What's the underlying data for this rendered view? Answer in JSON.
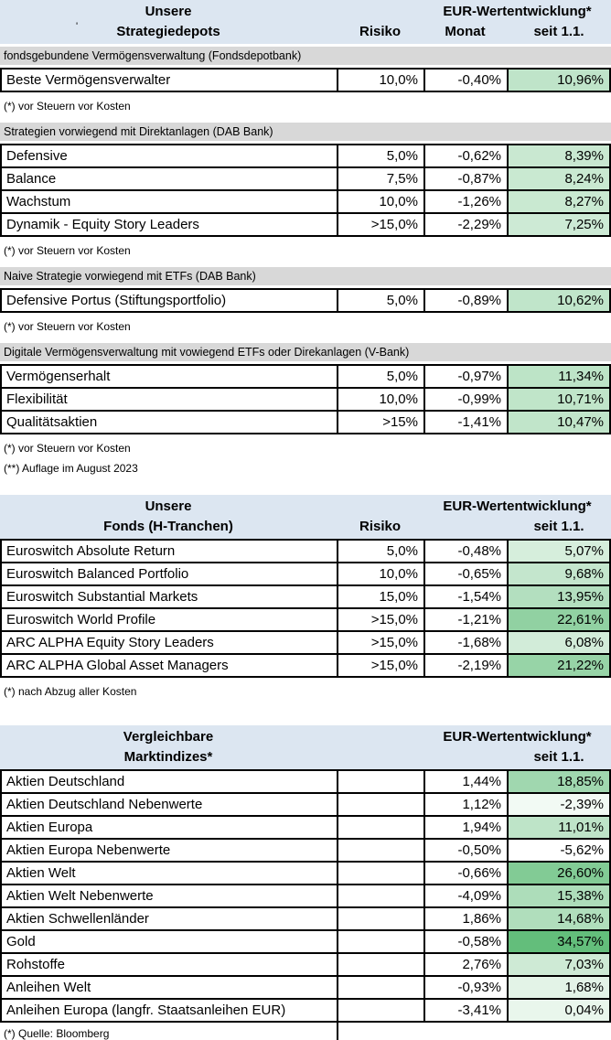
{
  "colors": {
    "header_bg": "#dce6f1",
    "section_bg": "#d8d8d8",
    "border": "#000000",
    "green_scale_max": "#63be7b",
    "green_scale_min": "#ffffff"
  },
  "stray_mark": "'",
  "tables": [
    {
      "header": {
        "top_left": "Unsere",
        "group": "EUR-Wertentwicklung*",
        "bottom_left": "Strategiedepots",
        "risiko": "Risiko",
        "monat": "Monat",
        "ytd": "seit 1.1."
      },
      "sections": [
        {
          "label": "fondsgebundene Vermögensverwaltung (Fondsdepotbank)",
          "rows": [
            {
              "name": "Beste Vermögensverwalter",
              "risiko": "10,0%",
              "monat": "-0,40%",
              "ytd": "10,96%",
              "ytd_bg": "#BFE4C9"
            }
          ],
          "footnotes": [
            "(*) vor Steuern vor Kosten"
          ]
        },
        {
          "label": "Strategien vorwiegend mit Direktanlagen (DAB Bank)",
          "rows": [
            {
              "name": "Defensive",
              "risiko": "5,0%",
              "monat": "-0,62%",
              "ytd": "8,39%",
              "ytd_bg": "#C9E8D1"
            },
            {
              "name": "Balance",
              "risiko": "7,5%",
              "monat": "-0,87%",
              "ytd": "8,24%",
              "ytd_bg": "#C9E9D1"
            },
            {
              "name": "Wachstum",
              "risiko": "10,0%",
              "monat": "-1,26%",
              "ytd": "8,27%",
              "ytd_bg": "#C9E9D1"
            },
            {
              "name": "Dynamik - Equity Story Leaders",
              "risiko": ">15,0%",
              "monat": "-2,29%",
              "ytd": "7,25%",
              "ytd_bg": "#CDEAD5"
            }
          ],
          "footnotes": [
            "(*) vor Steuern vor Kosten"
          ]
        },
        {
          "label": "Naive Strategie vorwiegend mit ETFs (DAB Bank)",
          "rows": [
            {
              "name": "Defensive Portus (Stiftungsportfolio)",
              "risiko": "5,0%",
              "monat": "-0,89%",
              "ytd": "10,62%",
              "ytd_bg": "#C0E5CA"
            }
          ],
          "footnotes": [
            "(*) vor Steuern vor Kosten"
          ]
        },
        {
          "label": "Digitale Vermögensverwaltung mit vowiegend ETFs oder Direkanlagen (V-Bank)",
          "rows": [
            {
              "name": "Vermögenserhalt",
              "risiko": "5,0%",
              "monat": "-0,97%",
              "ytd": "11,34%",
              "ytd_bg": "#BDE4C7"
            },
            {
              "name": "Flexibilität",
              "risiko": "10,0%",
              "monat": "-0,99%",
              "ytd": "10,71%",
              "ytd_bg": "#C0E5C9"
            },
            {
              "name": "Qualitätsaktien",
              "risiko": ">15%",
              "monat": "-1,41%",
              "ytd": "10,47%",
              "ytd_bg": "#C1E5CA"
            }
          ],
          "footnotes": [
            "(*) vor Steuern vor Kosten",
            "(**) Auflage im August 2023"
          ]
        }
      ]
    },
    {
      "header": {
        "top_left": "Unsere",
        "group": "EUR-Wertentwicklung*",
        "bottom_left": "Fonds (H-Tranchen)",
        "risiko": "Risiko",
        "monat": "",
        "ytd": "seit 1.1."
      },
      "rows": [
        {
          "name": "Euroswitch Absolute Return",
          "risiko": "5,0%",
          "monat": "-0,48%",
          "ytd": "5,07%",
          "ytd_bg": "#D6EEDC"
        },
        {
          "name": "Euroswitch Balanced Portfolio",
          "risiko": "10,0%",
          "monat": "-0,65%",
          "ytd": "9,68%",
          "ytd_bg": "#C4E6CD"
        },
        {
          "name": "Euroswitch Substantial Markets",
          "risiko": "15,0%",
          "monat": "-1,54%",
          "ytd": "13,95%",
          "ytd_bg": "#B3DFBF"
        },
        {
          "name": "Euroswitch World Profile",
          "risiko": ">15,0%",
          "monat": "-1,21%",
          "ytd": "22,61%",
          "ytd_bg": "#91D1A2"
        },
        {
          "name": "ARC ALPHA Equity Story Leaders",
          "risiko": ">15,0%",
          "monat": "-1,68%",
          "ytd": "6,08%",
          "ytd_bg": "#D2ECD9"
        },
        {
          "name": "ARC ALPHA Global Asset Managers",
          "risiko": ">15,0%",
          "monat": "-2,19%",
          "ytd": "21,22%",
          "ytd_bg": "#97D4A7"
        }
      ],
      "footnotes": [
        "(*) nach Abzug aller Kosten"
      ]
    },
    {
      "header": {
        "top_left": "Vergleichbare",
        "group": "EUR-Wertentwicklung*",
        "bottom_left": "Marktindizes*",
        "risiko": "",
        "monat": "",
        "ytd": "seit 1.1."
      },
      "rows": [
        {
          "name": "Aktien Deutschland",
          "risiko": "",
          "monat": "1,44%",
          "ytd": "18,85%",
          "ytd_bg": "#A0D7AF"
        },
        {
          "name": "Aktien Deutschland Nebenwerte",
          "risiko": "",
          "monat": "1,12%",
          "ytd": "-2,39%",
          "ytd_bg": "#F2FAF4"
        },
        {
          "name": "Aktien Europa",
          "risiko": "",
          "monat": "1,94%",
          "ytd": "11,01%",
          "ytd_bg": "#BEE4C8"
        },
        {
          "name": "Aktien Europa Nebenwerte",
          "risiko": "",
          "monat": "-0,50%",
          "ytd": "-5,62%",
          "ytd_bg": "#FFFFFF"
        },
        {
          "name": "Aktien Welt",
          "risiko": "",
          "monat": "-0,66%",
          "ytd": "26,60%",
          "ytd_bg": "#82CB95"
        },
        {
          "name": "Aktien Welt Nebenwerte",
          "risiko": "",
          "monat": "-4,09%",
          "ytd": "15,38%",
          "ytd_bg": "#ADDDBA"
        },
        {
          "name": "Aktien Schwellenländer",
          "risiko": "",
          "monat": "1,86%",
          "ytd": "14,68%",
          "ytd_bg": "#B0DEBC"
        },
        {
          "name": "Gold",
          "risiko": "",
          "monat": "-0,58%",
          "ytd": "34,57%",
          "ytd_bg": "#63BE7B"
        },
        {
          "name": "Rohstoffe",
          "risiko": "",
          "monat": "2,76%",
          "ytd": "7,03%",
          "ytd_bg": "#CEEAD5"
        },
        {
          "name": "Anleihen Welt",
          "risiko": "",
          "monat": "-0,93%",
          "ytd": "1,68%",
          "ytd_bg": "#E3F3E7"
        },
        {
          "name": "Anleihen Europa (langfr. Staatsanleihen EUR)",
          "risiko": "",
          "monat": "-3,41%",
          "ytd": "0,04%",
          "ytd_bg": "#E9F6EC"
        }
      ],
      "footnotes": [
        "(*) Quelle: Bloomberg"
      ]
    }
  ]
}
